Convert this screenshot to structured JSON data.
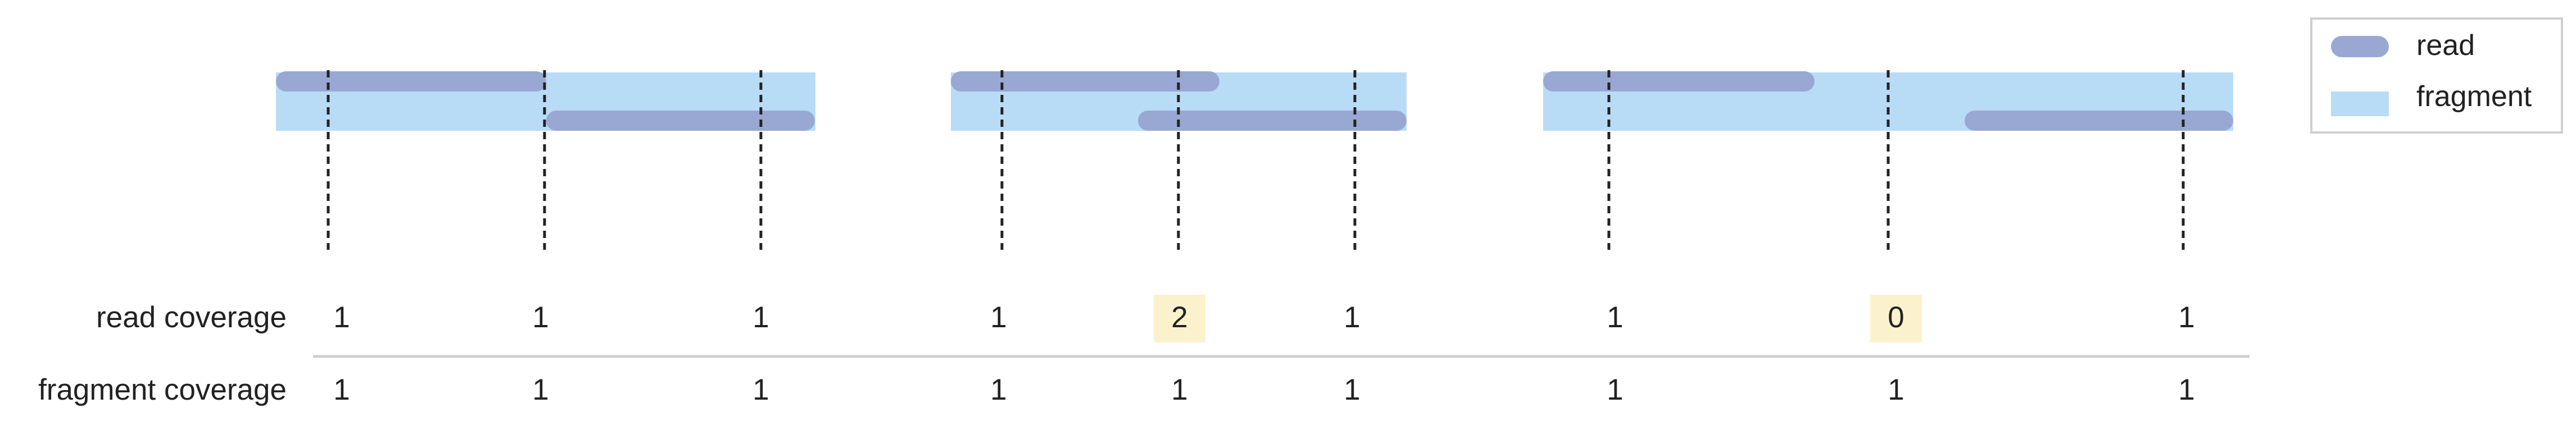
{
  "legend": {
    "read_label": "read",
    "fragment_label": "fragment"
  },
  "row_labels": {
    "read_coverage": "read coverage",
    "fragment_coverage": "fragment coverage"
  },
  "colors": {
    "read": "#98a8d3",
    "fragment": "#b9dcf6",
    "highlight": "#fbf1cc",
    "divider": "#cfcfcf",
    "dashed_line": "#222222"
  },
  "panels": [
    {
      "read_coverage": [
        "1",
        "1",
        "1"
      ],
      "fragment_coverage": [
        "1",
        "1",
        "1"
      ],
      "highlight": [
        false,
        false,
        false
      ]
    },
    {
      "read_coverage": [
        "1",
        "2",
        "1"
      ],
      "fragment_coverage": [
        "1",
        "1",
        "1"
      ],
      "highlight": [
        false,
        true,
        false
      ]
    },
    {
      "read_coverage": [
        "1",
        "0",
        "1"
      ],
      "fragment_coverage": [
        "1",
        "1",
        "1"
      ],
      "highlight": [
        false,
        true,
        false
      ]
    }
  ]
}
